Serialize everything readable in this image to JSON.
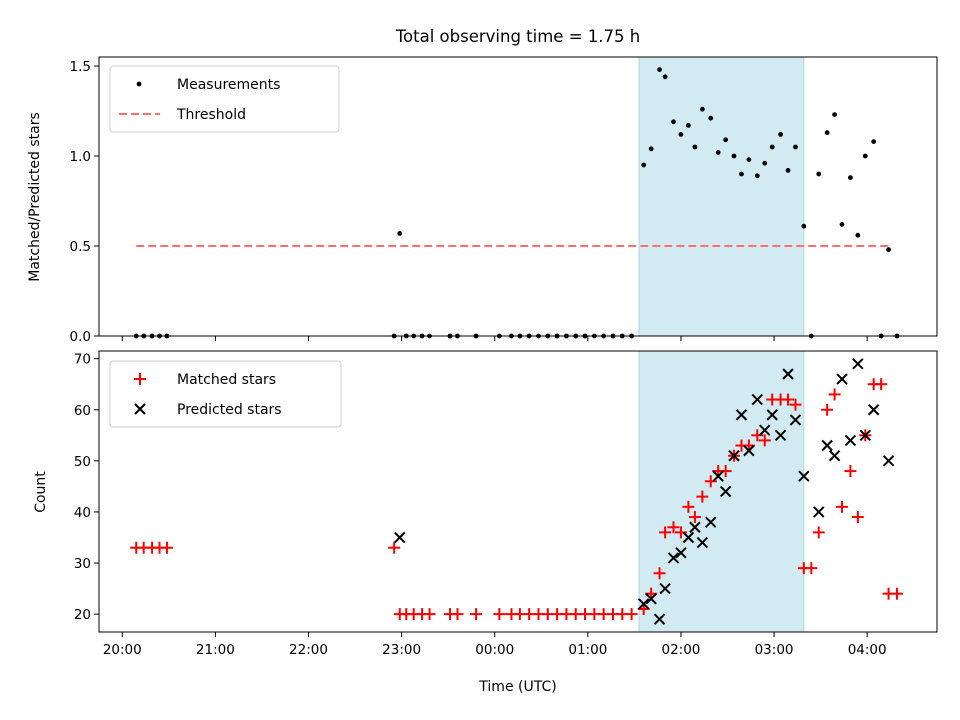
{
  "chart_data": {
    "type": "scatter",
    "title": "Total observing time = 1.75 h",
    "xlabel": "Time (UTC)",
    "x_ticks": [
      "20:00",
      "21:00",
      "22:00",
      "23:00",
      "00:00",
      "01:00",
      "02:00",
      "03:00",
      "04:00"
    ],
    "x_range": [
      19.75,
      28.75
    ],
    "shaded_interval": [
      25.55,
      27.32
    ],
    "shade_color": "#add8e6",
    "top": {
      "ylabel": "Matched/Predicted stars",
      "ylim": [
        0,
        1.55
      ],
      "yticks": [
        "0.0",
        "0.5",
        "1.0",
        "1.5"
      ],
      "legend": {
        "placement": "upper-left",
        "entries": [
          "Measurements",
          "Threshold"
        ]
      },
      "threshold": {
        "name": "Threshold",
        "value": 0.5,
        "x_range": [
          20.15,
          28.25
        ],
        "color": "#ff6f6f"
      },
      "measurements": {
        "name": "Measurements",
        "color": "#000000",
        "points": [
          [
            20.15,
            0
          ],
          [
            20.23,
            0
          ],
          [
            20.32,
            0
          ],
          [
            20.4,
            0
          ],
          [
            20.48,
            0
          ],
          [
            22.92,
            0
          ],
          [
            22.98,
            0.57
          ],
          [
            23.05,
            0
          ],
          [
            23.13,
            0
          ],
          [
            23.22,
            0
          ],
          [
            23.3,
            0
          ],
          [
            23.52,
            0
          ],
          [
            23.6,
            0
          ],
          [
            23.8,
            0
          ],
          [
            24.05,
            0
          ],
          [
            24.18,
            0
          ],
          [
            24.27,
            0
          ],
          [
            24.37,
            0
          ],
          [
            24.47,
            0
          ],
          [
            24.57,
            0
          ],
          [
            24.67,
            0
          ],
          [
            24.77,
            0
          ],
          [
            24.87,
            0
          ],
          [
            24.97,
            0
          ],
          [
            25.07,
            0
          ],
          [
            25.17,
            0
          ],
          [
            25.27,
            0
          ],
          [
            25.37,
            0
          ],
          [
            25.47,
            0
          ],
          [
            25.6,
            0.95
          ],
          [
            25.68,
            1.04
          ],
          [
            25.77,
            1.48
          ],
          [
            25.83,
            1.44
          ],
          [
            25.92,
            1.19
          ],
          [
            26.0,
            1.12
          ],
          [
            26.08,
            1.17
          ],
          [
            26.15,
            1.05
          ],
          [
            26.23,
            1.26
          ],
          [
            26.32,
            1.21
          ],
          [
            26.4,
            1.02
          ],
          [
            26.48,
            1.09
          ],
          [
            26.57,
            1.0
          ],
          [
            26.65,
            0.9
          ],
          [
            26.73,
            0.98
          ],
          [
            26.82,
            0.89
          ],
          [
            26.9,
            0.96
          ],
          [
            26.98,
            1.05
          ],
          [
            27.07,
            1.12
          ],
          [
            27.15,
            0.92
          ],
          [
            27.23,
            1.05
          ],
          [
            27.32,
            0.61
          ],
          [
            27.4,
            0
          ],
          [
            27.48,
            0.9
          ],
          [
            27.57,
            1.13
          ],
          [
            27.65,
            1.23
          ],
          [
            27.73,
            0.62
          ],
          [
            27.82,
            0.88
          ],
          [
            27.9,
            0.56
          ],
          [
            27.98,
            1.0
          ],
          [
            28.07,
            1.08
          ],
          [
            28.15,
            0
          ],
          [
            28.23,
            0.48
          ],
          [
            28.32,
            0
          ]
        ]
      }
    },
    "bottom": {
      "ylabel": "Count",
      "ylim": [
        16.5,
        71.5
      ],
      "yticks": [
        "20",
        "30",
        "40",
        "50",
        "60",
        "70"
      ],
      "legend": {
        "placement": "upper-left",
        "entries": [
          "Matched stars",
          "Predicted stars"
        ]
      },
      "series": [
        {
          "name": "Matched stars",
          "marker": "+",
          "color": "#ff0000",
          "points": [
            [
              20.15,
              33
            ],
            [
              20.23,
              33
            ],
            [
              20.32,
              33
            ],
            [
              20.4,
              33
            ],
            [
              20.48,
              33
            ],
            [
              22.92,
              33
            ],
            [
              22.98,
              20
            ],
            [
              23.05,
              20
            ],
            [
              23.13,
              20
            ],
            [
              23.22,
              20
            ],
            [
              23.3,
              20
            ],
            [
              23.52,
              20
            ],
            [
              23.6,
              20
            ],
            [
              23.8,
              20
            ],
            [
              24.05,
              20
            ],
            [
              24.18,
              20
            ],
            [
              24.27,
              20
            ],
            [
              24.37,
              20
            ],
            [
              24.47,
              20
            ],
            [
              24.57,
              20
            ],
            [
              24.67,
              20
            ],
            [
              24.77,
              20
            ],
            [
              24.87,
              20
            ],
            [
              24.97,
              20
            ],
            [
              25.07,
              20
            ],
            [
              25.17,
              20
            ],
            [
              25.27,
              20
            ],
            [
              25.37,
              20
            ],
            [
              25.47,
              20
            ],
            [
              25.6,
              21
            ],
            [
              25.68,
              24
            ],
            [
              25.77,
              28
            ],
            [
              25.83,
              36
            ],
            [
              25.92,
              37
            ],
            [
              26.0,
              36
            ],
            [
              26.08,
              41
            ],
            [
              26.15,
              39
            ],
            [
              26.23,
              43
            ],
            [
              26.32,
              46
            ],
            [
              26.4,
              48
            ],
            [
              26.48,
              48
            ],
            [
              26.57,
              51
            ],
            [
              26.65,
              53
            ],
            [
              26.73,
              53
            ],
            [
              26.82,
              55
            ],
            [
              26.9,
              54
            ],
            [
              26.98,
              62
            ],
            [
              27.07,
              62
            ],
            [
              27.15,
              62
            ],
            [
              27.23,
              61
            ],
            [
              27.32,
              29
            ],
            [
              27.4,
              29
            ],
            [
              27.48,
              36
            ],
            [
              27.57,
              60
            ],
            [
              27.65,
              63
            ],
            [
              27.73,
              41
            ],
            [
              27.82,
              48
            ],
            [
              27.9,
              39
            ],
            [
              27.98,
              55
            ],
            [
              28.07,
              65
            ],
            [
              28.15,
              65
            ],
            [
              28.23,
              24
            ],
            [
              28.32,
              24
            ]
          ]
        },
        {
          "name": "Predicted stars",
          "marker": "x",
          "color": "#000000",
          "points": [
            [
              22.98,
              35
            ],
            [
              25.6,
              22
            ],
            [
              25.68,
              23
            ],
            [
              25.77,
              19
            ],
            [
              25.83,
              25
            ],
            [
              25.92,
              31
            ],
            [
              26.0,
              32
            ],
            [
              26.08,
              35
            ],
            [
              26.15,
              37
            ],
            [
              26.23,
              34
            ],
            [
              26.32,
              38
            ],
            [
              26.4,
              47
            ],
            [
              26.48,
              44
            ],
            [
              26.57,
              51
            ],
            [
              26.65,
              59
            ],
            [
              26.73,
              52
            ],
            [
              26.82,
              62
            ],
            [
              26.9,
              56
            ],
            [
              26.98,
              59
            ],
            [
              27.07,
              55
            ],
            [
              27.15,
              67
            ],
            [
              27.23,
              58
            ],
            [
              27.32,
              47
            ],
            [
              27.48,
              40
            ],
            [
              27.57,
              53
            ],
            [
              27.65,
              51
            ],
            [
              27.73,
              66
            ],
            [
              27.82,
              54
            ],
            [
              27.9,
              69
            ],
            [
              27.98,
              55
            ],
            [
              28.07,
              60
            ],
            [
              28.23,
              50
            ]
          ]
        }
      ]
    }
  }
}
